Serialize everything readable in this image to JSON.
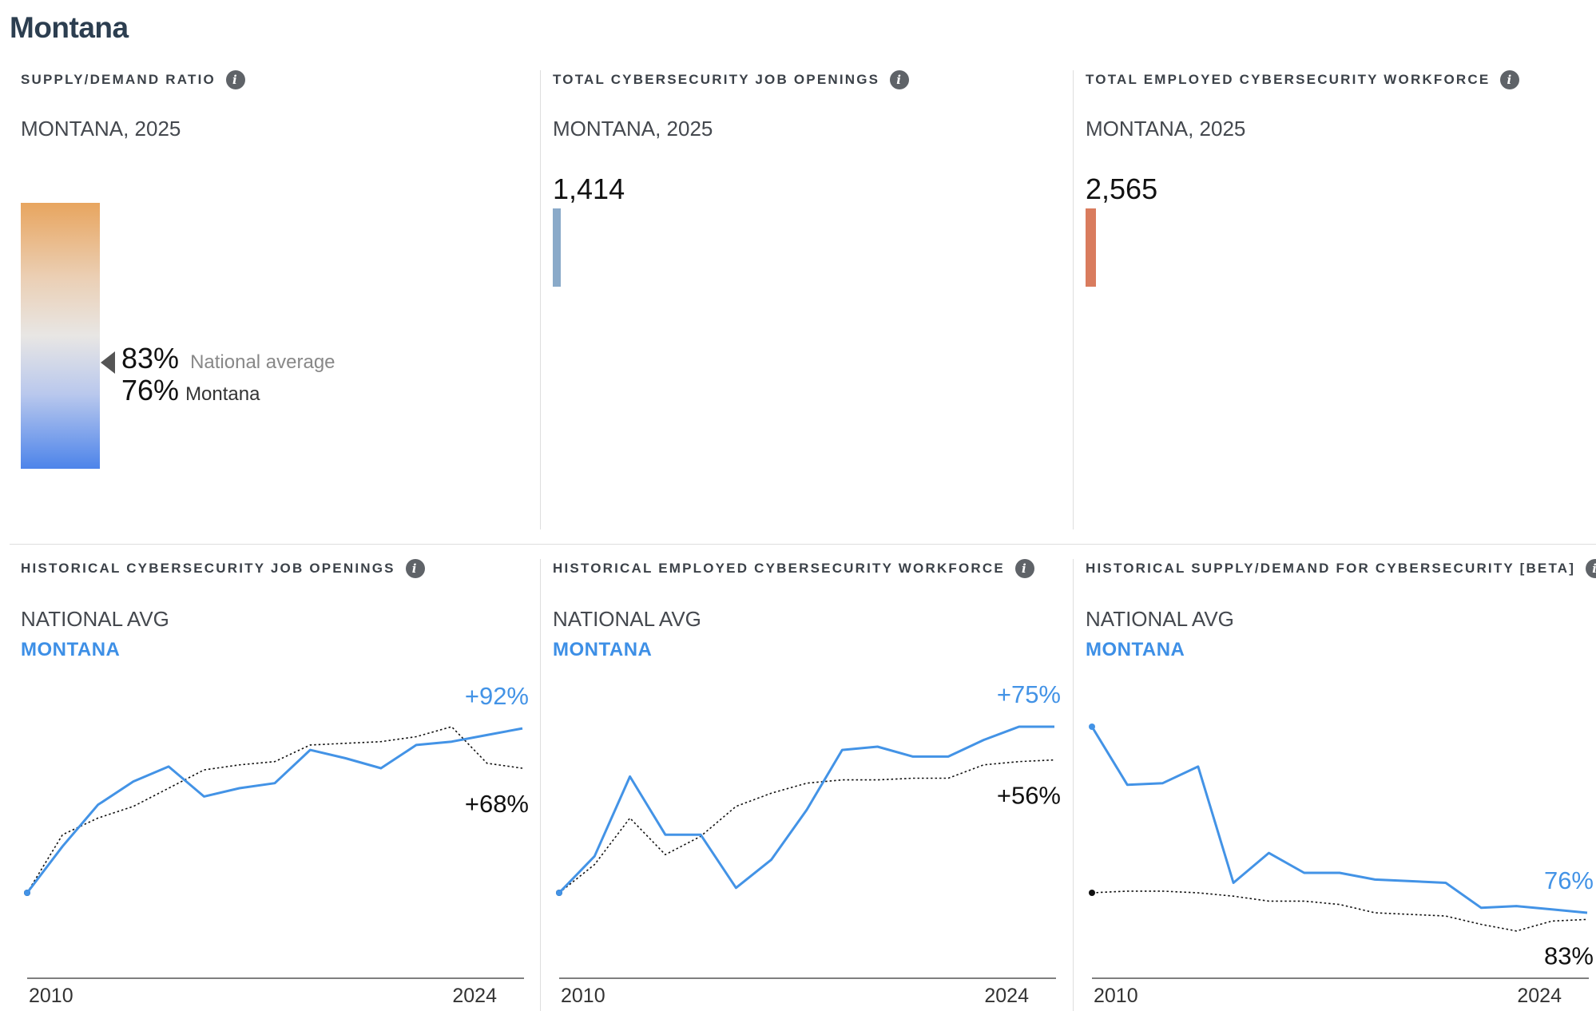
{
  "page_title": "Montana",
  "colors": {
    "montana_line": "#4393e6",
    "national_line": "#111111",
    "job_openings_bar": "#8aaac9",
    "workforce_bar": "#d97c5e",
    "gradient_top": "#e8a55f",
    "gradient_bottom": "#4d84ea"
  },
  "top_panels": {
    "ratio": {
      "title": "SUPPLY/DEMAND RATIO",
      "location": "MONTANA, 2025",
      "national_value": "83%",
      "national_label": "National average",
      "state_value": "76%",
      "state_label": "Montana"
    },
    "job_openings": {
      "title": "TOTAL CYBERSECURITY JOB OPENINGS",
      "location": "MONTANA, 2025",
      "value": "1,414"
    },
    "workforce": {
      "title": "TOTAL EMPLOYED CYBERSECURITY WORKFORCE",
      "location": "MONTANA, 2025",
      "value": "2,565"
    }
  },
  "bottom_panels": [
    {
      "title": "HISTORICAL CYBERSECURITY JOB OPENINGS",
      "national_label": "NATIONAL AVG",
      "state_label": "MONTANA"
    },
    {
      "title": "HISTORICAL EMPLOYED CYBERSECURITY WORKFORCE",
      "national_label": "NATIONAL AVG",
      "state_label": "MONTANA"
    },
    {
      "title": "HISTORICAL SUPPLY/DEMAND FOR CYBERSECURITY [BETA]",
      "national_label": "NATIONAL AVG",
      "state_label": "MONTANA"
    }
  ],
  "chart_data": [
    {
      "type": "line",
      "title": "HISTORICAL CYBERSECURITY JOB OPENINGS",
      "x": [
        2010,
        2011,
        2012,
        2013,
        2014,
        2015,
        2016,
        2017,
        2018,
        2019,
        2020,
        2021,
        2022,
        2023,
        2024
      ],
      "x_tick_labels": [
        "2010",
        "2024"
      ],
      "series": [
        {
          "name": "MONTANA",
          "values": [
            0,
            28,
            53,
            67,
            76,
            58,
            63,
            66,
            86,
            81,
            75,
            89,
            91,
            95,
            99
          ],
          "end_label": "+92%",
          "style": "solid"
        },
        {
          "name": "NATIONAL AVG",
          "values": [
            0,
            35,
            45,
            52,
            63,
            74,
            77,
            79,
            89,
            90,
            91,
            94,
            100,
            78,
            75
          ],
          "end_label": "+68%",
          "style": "dotted"
        }
      ],
      "ylim": [
        -53,
        100
      ]
    },
    {
      "type": "line",
      "title": "HISTORICAL EMPLOYED CYBERSECURITY WORKFORCE",
      "x": [
        2010,
        2011,
        2012,
        2013,
        2014,
        2015,
        2016,
        2017,
        2018,
        2019,
        2020,
        2021,
        2022,
        2023,
        2024
      ],
      "x_tick_labels": [
        "2010",
        "2024"
      ],
      "series": [
        {
          "name": "MONTANA",
          "values": [
            0,
            22,
            70,
            35,
            35,
            3,
            20,
            50,
            86,
            88,
            82,
            82,
            92,
            100,
            100
          ],
          "end_label": "+75%",
          "style": "solid"
        },
        {
          "name": "NATIONAL AVG",
          "values": [
            0,
            17,
            45,
            23,
            34,
            52,
            60,
            66,
            68,
            68,
            69,
            69,
            77,
            79,
            80
          ],
          "end_label": "+56%",
          "style": "dotted"
        }
      ],
      "ylim": [
        -68,
        100
      ]
    },
    {
      "type": "line",
      "title": "HISTORICAL SUPPLY/DEMAND FOR CYBERSECURITY [BETA]",
      "x": [
        2010,
        2011,
        2012,
        2013,
        2014,
        2015,
        2016,
        2017,
        2018,
        2019,
        2020,
        2021,
        2022,
        2023,
        2024
      ],
      "x_tick_labels": [
        "2010",
        "2024"
      ],
      "series": [
        {
          "name": "MONTANA",
          "values": [
            100,
            65,
            66,
            76,
            6,
            24,
            12,
            12,
            8,
            7,
            6,
            -9,
            -8,
            -10,
            -12
          ],
          "end_label": "76%",
          "style": "solid"
        },
        {
          "name": "NATIONAL AVG",
          "values": [
            0,
            1,
            1,
            0,
            -2,
            -5,
            -5,
            -7,
            -12,
            -13,
            -14,
            -19,
            -23,
            -17,
            -16
          ],
          "end_label": "83%",
          "style": "dotted"
        }
      ],
      "ylim": [
        -45,
        100
      ]
    }
  ]
}
